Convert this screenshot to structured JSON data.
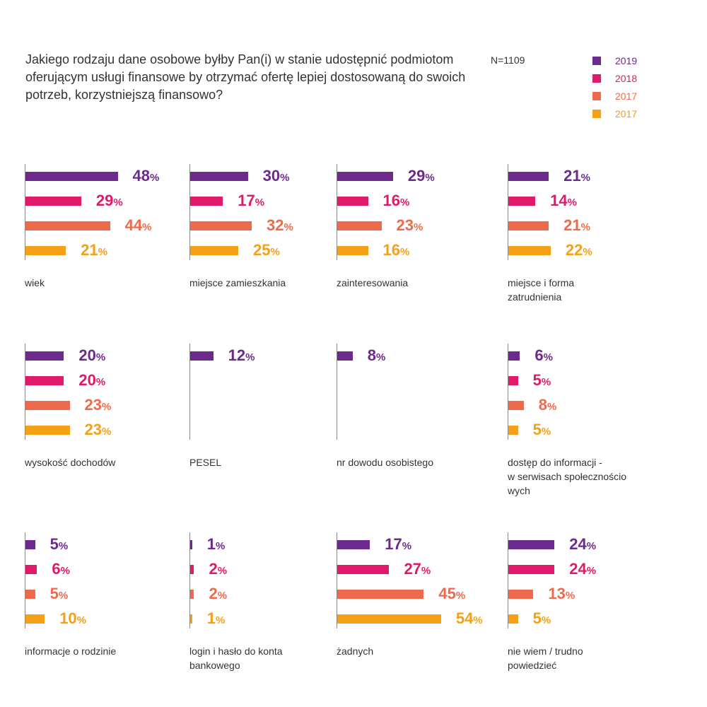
{
  "header": {
    "title": "Jakiego rodzaju dane osobowe byłby Pan(i) w stanie udostępnić podmiotom oferującym usługi finansowe by otrzymać ofertę lepiej dostosowaną do swoich potrzeb, korzystniejszą finansowo?",
    "sample_size": "N=1109"
  },
  "colors": [
    "#6b2a8c",
    "#e0196b",
    "#ee6a4c",
    "#f6a017"
  ],
  "legend": [
    {
      "label": "2019",
      "color": "#6b2a8c"
    },
    {
      "label": "2018",
      "color": "#e0196b"
    },
    {
      "label": "2017",
      "color": "#ee6a4c"
    },
    {
      "label": "2017",
      "color": "#f6a017"
    }
  ],
  "chart_data": {
    "type": "bar",
    "orientation": "horizontal",
    "unit": "%",
    "xlim": [
      0,
      60
    ],
    "legend_position": "top-right",
    "series_names": [
      "2019",
      "2018",
      "2017",
      "2017"
    ],
    "panels": [
      {
        "category": "wiek",
        "values": [
          48,
          29,
          44,
          21
        ]
      },
      {
        "category": "miejsce zamieszkania",
        "values": [
          30,
          17,
          32,
          25
        ]
      },
      {
        "category": "zainteresowania",
        "values": [
          29,
          16,
          23,
          16
        ]
      },
      {
        "category": "miejsce i forma\nzatrudnienia",
        "values": [
          21,
          14,
          21,
          22
        ]
      },
      {
        "category": "wysokość dochodów",
        "values": [
          20,
          20,
          23,
          23
        ]
      },
      {
        "category": "PESEL",
        "values": [
          12
        ]
      },
      {
        "category": "nr dowodu osobistego",
        "values": [
          8
        ]
      },
      {
        "category": "dostęp do informacji           -\nw serwisach społecznościo\nwych",
        "values": [
          6,
          5,
          8,
          5
        ]
      },
      {
        "category": "informacje o rodzinie",
        "values": [
          5,
          6,
          5,
          10
        ]
      },
      {
        "category": "login i hasło do konta\nbankowego",
        "values": [
          1,
          2,
          2,
          1
        ]
      },
      {
        "category": "żadnych",
        "values": [
          17,
          27,
          45,
          54
        ]
      },
      {
        "category": "nie wiem / trudno\npowiedzieć",
        "values": [
          24,
          24,
          13,
          5
        ]
      }
    ]
  }
}
